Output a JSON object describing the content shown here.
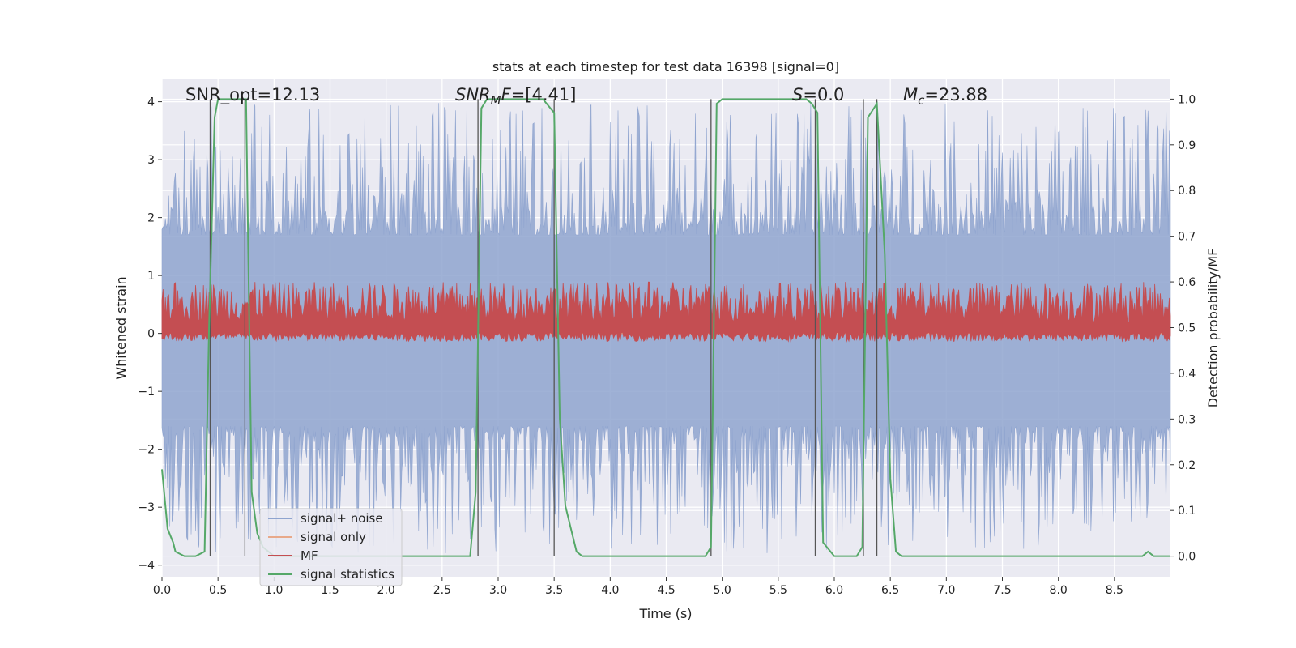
{
  "chart_data": {
    "type": "line",
    "title": "stats at each timestep for test data 16398 [signal=0]",
    "xlabel": "Time (s)",
    "ylabel": "Whitened strain",
    "y2label": "Detection probability/MF",
    "xlim": [
      0.0,
      9.0
    ],
    "ylim": [
      -4.2,
      4.4
    ],
    "y2lim": [
      -0.045,
      1.045
    ],
    "xticks": [
      "0.0",
      "0.5",
      "1.0",
      "1.5",
      "2.0",
      "2.5",
      "3.0",
      "3.5",
      "4.0",
      "4.5",
      "5.0",
      "5.5",
      "6.0",
      "6.5",
      "7.0",
      "7.5",
      "8.0",
      "8.5"
    ],
    "xtick_values": [
      0.0,
      0.5,
      1.0,
      1.5,
      2.0,
      2.5,
      3.0,
      3.5,
      4.0,
      4.5,
      5.0,
      5.5,
      6.0,
      6.5,
      7.0,
      7.5,
      8.0,
      8.5
    ],
    "yticks": [
      "4",
      "3",
      "2",
      "1",
      "0",
      "−1",
      "−2",
      "−3",
      "−4"
    ],
    "ytick_values": [
      4,
      3,
      2,
      1,
      0,
      -1,
      -2,
      -3,
      -4
    ],
    "y2ticks": [
      "1.0",
      "0.9",
      "0.8",
      "0.7",
      "0.6",
      "0.5",
      "0.4",
      "0.3",
      "0.2",
      "0.1",
      "0.0"
    ],
    "y2tick_values": [
      1.0,
      0.9,
      0.8,
      0.7,
      0.6,
      0.5,
      0.4,
      0.3,
      0.2,
      0.1,
      0.0
    ],
    "grid": true,
    "legend_position": "lower-left",
    "annotations": {
      "snr_opt": "SNR_opt=12.13",
      "snr_mf_italic": "SNR",
      "snr_mf_sub": "M",
      "snr_mf_rest_italic": "F",
      "snr_mf_value": "=[4.41]",
      "s_italic": "S",
      "s_value": "=0.0",
      "mc_italic": "M",
      "mc_sub": "c",
      "mc_value": "=23.88"
    },
    "series": [
      {
        "name": "signal+ noise",
        "color": "#8fa4cf",
        "style": "noise",
        "axis": "left",
        "amplitude_envelope": [
          1.7,
          4.0
        ],
        "negative_envelope": [
          -1.6,
          -3.8
        ]
      },
      {
        "name": "signal only",
        "color": "#e8a98a",
        "style": "flat",
        "axis": "left",
        "value": 0.0
      },
      {
        "name": "MF",
        "color": "#c44e52",
        "style": "noise",
        "axis": "right",
        "band": [
          0.48,
          0.6
        ]
      },
      {
        "name": "signal statistics",
        "color": "#55a868",
        "style": "line",
        "axis": "right",
        "x": [
          0.0,
          0.05,
          0.1,
          0.12,
          0.2,
          0.3,
          0.38,
          0.42,
          0.47,
          0.5,
          0.55,
          0.7,
          0.75,
          0.8,
          0.85,
          0.9,
          1.0,
          1.5,
          2.0,
          2.5,
          2.7,
          2.75,
          2.8,
          2.85,
          2.9,
          3.0,
          3.3,
          3.4,
          3.5,
          3.55,
          3.6,
          3.65,
          3.7,
          3.75,
          4.0,
          4.5,
          4.8,
          4.85,
          4.9,
          4.95,
          5.0,
          5.5,
          5.75,
          5.8,
          5.85,
          5.9,
          6.0,
          6.2,
          6.25,
          6.3,
          6.38,
          6.45,
          6.5,
          6.55,
          6.6,
          7.0,
          8.0,
          8.5,
          8.75,
          8.8,
          8.85,
          9.0
        ],
        "y": [
          0.19,
          0.06,
          0.03,
          0.01,
          0.0,
          0.0,
          0.01,
          0.5,
          0.96,
          1.0,
          1.0,
          1.0,
          1.0,
          0.14,
          0.05,
          0.02,
          0.0,
          0.0,
          0.0,
          0.0,
          0.0,
          0.0,
          0.14,
          0.98,
          1.0,
          1.0,
          1.0,
          1.0,
          0.97,
          0.3,
          0.11,
          0.06,
          0.01,
          0.0,
          0.0,
          0.0,
          0.0,
          0.0,
          0.02,
          0.99,
          1.0,
          1.0,
          1.0,
          0.99,
          0.97,
          0.03,
          0.0,
          0.0,
          0.02,
          0.96,
          0.99,
          0.66,
          0.17,
          0.01,
          0.0,
          0.0,
          0.0,
          0.0,
          0.0,
          0.01,
          0.0,
          0.0
        ]
      }
    ],
    "vertical_markers_x": [
      0.43,
      0.74,
      2.82,
      3.5,
      4.9,
      5.83,
      6.26,
      6.38
    ],
    "vertical_marker_color": "#555555"
  }
}
